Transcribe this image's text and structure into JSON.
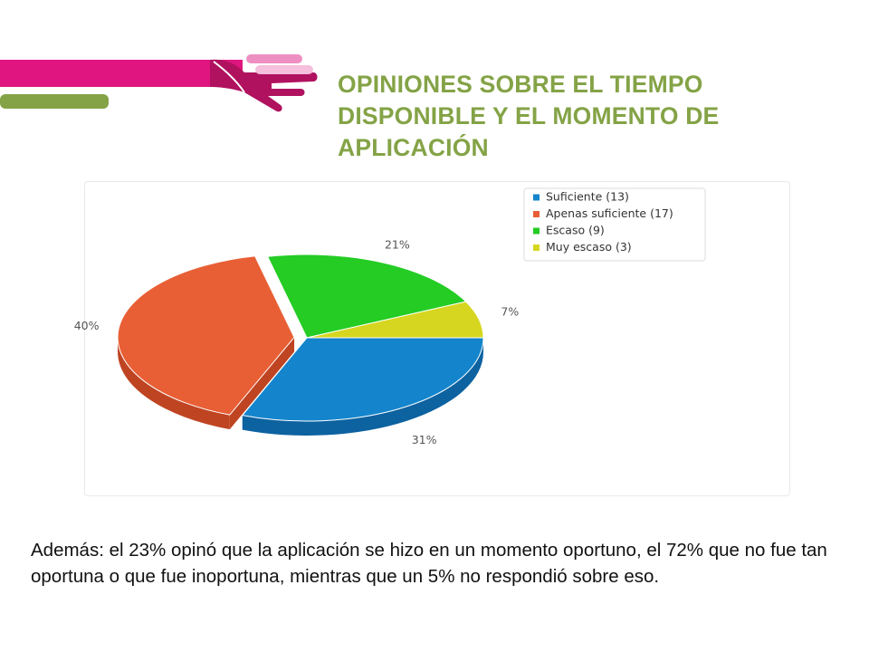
{
  "slide": {
    "title": "OPINIONES SOBRE EL TIEMPO DISPONIBLE Y EL MOMENTO DE APLICACIÓN",
    "summary": "Además: el 23% opinó que la aplicación se hizo en un momento oportuno, el 72% que no fue tan oportuna o que fue inoportuna, mientras que un 5% no respondió sobre eso."
  },
  "colors": {
    "title": "#84a346",
    "magenta": "#e0157f",
    "dark_magenta": "#b0125f",
    "pink": "#ee8fc2",
    "light_pink": "#f6bfdc",
    "green_bar": "#84a346"
  },
  "chart_data": {
    "type": "pie",
    "style": "3d",
    "title": "",
    "legend_position": "top-right",
    "slices": [
      {
        "label": "Suficiente (13)",
        "value": 13,
        "percent_label": "31%",
        "color": "#1485cc",
        "side_color": "#0d62a0"
      },
      {
        "label": "Apenas suficiente (17)",
        "value": 17,
        "percent_label": "40%",
        "color": "#e85f36",
        "side_color": "#bf4422"
      },
      {
        "label": "Escaso (9)",
        "value": 9,
        "percent_label": "21%",
        "color": "#24cc24",
        "side_color": "#17a017"
      },
      {
        "label": "Muy escaso (3)",
        "value": 3,
        "percent_label": "7%",
        "color": "#d6d620",
        "side_color": "#a8a812"
      }
    ]
  }
}
